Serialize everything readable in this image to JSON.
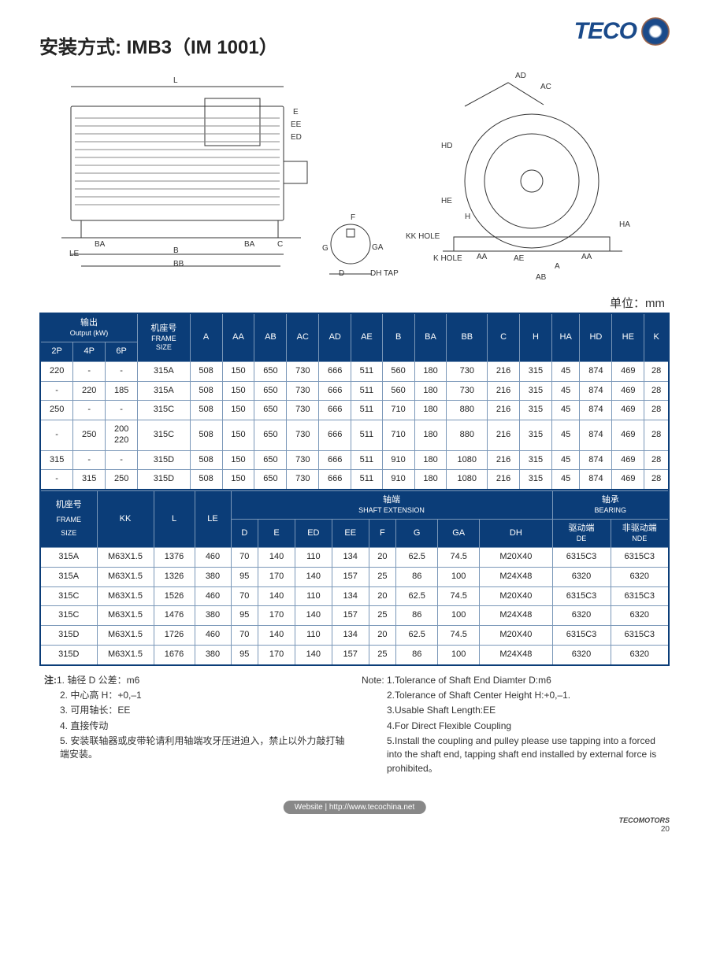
{
  "brand": {
    "name": "TECO",
    "footer_brand": "TECOMOTORS"
  },
  "page_title": "安装方式: IMB3（IM 1001）",
  "unit_label": "单位：mm",
  "diagram_labels": [
    "L",
    "E",
    "EE",
    "ED",
    "BA",
    "B",
    "BA",
    "C",
    "LE",
    "BB",
    "F",
    "G",
    "GA",
    "D",
    "DH TAP",
    "AD",
    "AC",
    "HD",
    "HE",
    "H",
    "HA",
    "AA",
    "AE",
    "A",
    "AB",
    "KK HOLE",
    "K HOLE"
  ],
  "table1": {
    "hdr_output_cn": "输出",
    "hdr_output_en": "Output (kW)",
    "hdr_frame_cn": "机座号",
    "hdr_frame_en": "FRAME",
    "hdr_frame_sub": "SIZE",
    "cols_output": [
      "2P",
      "4P",
      "6P"
    ],
    "cols_dim": [
      "A",
      "AA",
      "AB",
      "AC",
      "AD",
      "AE",
      "B",
      "BA",
      "BB",
      "C",
      "H",
      "HA",
      "HD",
      "HE",
      "K"
    ],
    "rows": [
      {
        "out": [
          "220",
          "-",
          "-"
        ],
        "frame": "315A",
        "vals": [
          "508",
          "150",
          "650",
          "730",
          "666",
          "511",
          "560",
          "180",
          "730",
          "216",
          "315",
          "45",
          "874",
          "469",
          "28"
        ]
      },
      {
        "out": [
          "-",
          "220",
          "185"
        ],
        "frame": "315A",
        "vals": [
          "508",
          "150",
          "650",
          "730",
          "666",
          "511",
          "560",
          "180",
          "730",
          "216",
          "315",
          "45",
          "874",
          "469",
          "28"
        ]
      },
      {
        "out": [
          "250",
          "-",
          "-"
        ],
        "frame": "315C",
        "vals": [
          "508",
          "150",
          "650",
          "730",
          "666",
          "511",
          "710",
          "180",
          "880",
          "216",
          "315",
          "45",
          "874",
          "469",
          "28"
        ]
      },
      {
        "out": [
          "-",
          "250",
          "200\n220"
        ],
        "frame": "315C",
        "vals": [
          "508",
          "150",
          "650",
          "730",
          "666",
          "511",
          "710",
          "180",
          "880",
          "216",
          "315",
          "45",
          "874",
          "469",
          "28"
        ]
      },
      {
        "out": [
          "315",
          "-",
          "-"
        ],
        "frame": "315D",
        "vals": [
          "508",
          "150",
          "650",
          "730",
          "666",
          "511",
          "910",
          "180",
          "1080",
          "216",
          "315",
          "45",
          "874",
          "469",
          "28"
        ]
      },
      {
        "out": [
          "-",
          "315",
          "250"
        ],
        "frame": "315D",
        "vals": [
          "508",
          "150",
          "650",
          "730",
          "666",
          "511",
          "910",
          "180",
          "1080",
          "216",
          "315",
          "45",
          "874",
          "469",
          "28"
        ]
      }
    ]
  },
  "table2": {
    "hdr_frame_cn": "机座号",
    "hdr_frame_en": "FRAME",
    "hdr_frame_sub": "SIZE",
    "hdr_kk": "KK",
    "hdr_l": "L",
    "hdr_le": "LE",
    "hdr_shaft_cn": "轴端",
    "hdr_shaft_en": "SHAFT  EXTENSION",
    "hdr_bearing_cn": "轴承",
    "hdr_bearing_en": "BEARING",
    "cols_shaft": [
      "D",
      "E",
      "ED",
      "EE",
      "F",
      "G",
      "GA",
      "DH"
    ],
    "hdr_de_cn": "驱动端",
    "hdr_de_en": "DE",
    "hdr_nde_cn": "非驱动端",
    "hdr_nde_en": "NDE",
    "rows": [
      {
        "frame": "315A",
        "kk": "M63X1.5",
        "l": "1376",
        "le": "460",
        "shaft": [
          "70",
          "140",
          "110",
          "134",
          "20",
          "62.5",
          "74.5",
          "M20X40"
        ],
        "de": "6315C3",
        "nde": "6315C3"
      },
      {
        "frame": "315A",
        "kk": "M63X1.5",
        "l": "1326",
        "le": "380",
        "shaft": [
          "95",
          "170",
          "140",
          "157",
          "25",
          "86",
          "100",
          "M24X48"
        ],
        "de": "6320",
        "nde": "6320"
      },
      {
        "frame": "315C",
        "kk": "M63X1.5",
        "l": "1526",
        "le": "460",
        "shaft": [
          "70",
          "140",
          "110",
          "134",
          "20",
          "62.5",
          "74.5",
          "M20X40"
        ],
        "de": "6315C3",
        "nde": "6315C3"
      },
      {
        "frame": "315C",
        "kk": "M63X1.5",
        "l": "1476",
        "le": "380",
        "shaft": [
          "95",
          "170",
          "140",
          "157",
          "25",
          "86",
          "100",
          "M24X48"
        ],
        "de": "6320",
        "nde": "6320"
      },
      {
        "frame": "315D",
        "kk": "M63X1.5",
        "l": "1726",
        "le": "460",
        "shaft": [
          "70",
          "140",
          "110",
          "134",
          "20",
          "62.5",
          "74.5",
          "M20X40"
        ],
        "de": "6315C3",
        "nde": "6315C3"
      },
      {
        "frame": "315D",
        "kk": "M63X1.5",
        "l": "1676",
        "le": "380",
        "shaft": [
          "95",
          "170",
          "140",
          "157",
          "25",
          "86",
          "100",
          "M24X48"
        ],
        "de": "6320",
        "nde": "6320"
      }
    ]
  },
  "notes": {
    "left_title": "注:",
    "left": [
      "1. 轴径 D 公差：m6",
      "2. 中心高 H：+0,–1",
      "3. 可用轴长：EE",
      "4. 直接传动",
      "5. 安装联轴器或皮带轮请利用轴端攻牙压进迫入，禁止以外力敲打轴端安装。"
    ],
    "right_title": "Note:",
    "right": [
      "1.Tolerance of Shaft End Diamter D:m6",
      "2.Tolerance of Shaft Center Height H:+0,–1.",
      "3.Usable Shaft Length:EE",
      "4.For Direct Flexible Coupling",
      "5.Install the coupling and pulley please use tapping into a forced into the shaft end, tapping shaft end installed by external force is prohibited。"
    ]
  },
  "footer": {
    "website_label": "Website | http://www.tecochina.net",
    "page_no": "20"
  },
  "colors": {
    "table_header_bg": "#0b3d78",
    "table_header_fg": "#ffffff",
    "brand_text": "#1a4a8a"
  }
}
